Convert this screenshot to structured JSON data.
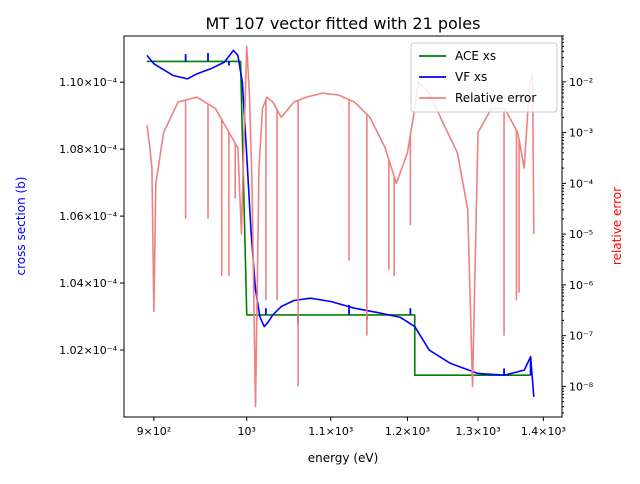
{
  "chart_data": {
    "type": "line",
    "title": "MT 107 vector fitted with 21 poles",
    "xlabel": "energy (eV)",
    "ylabel_left": "cross section (b)",
    "ylabel_right": "relative error",
    "x_scale": "log",
    "y_right_scale": "log",
    "xlim": [
      870,
      1430
    ],
    "ylim_left": [
      0.0001,
      0.00011138
    ],
    "ylim_right": [
      2.5e-09,
      0.08
    ],
    "x_ticks": [
      {
        "value": 900,
        "label": "9×10²"
      },
      {
        "value": 1000,
        "label": "10³"
      },
      {
        "value": 1100,
        "label": "1.1×10³"
      },
      {
        "value": 1200,
        "label": "1.2×10³"
      },
      {
        "value": 1300,
        "label": "1.3×10³"
      },
      {
        "value": 1400,
        "label": "1.4×10³"
      }
    ],
    "y_left_ticks": [
      {
        "value": 0.000102,
        "label": "1.02×10⁻⁴"
      },
      {
        "value": 0.000104,
        "label": "1.04×10⁻⁴"
      },
      {
        "value": 0.000106,
        "label": "1.06×10⁻⁴"
      },
      {
        "value": 0.000108,
        "label": "1.08×10⁻⁴"
      },
      {
        "value": 0.00011,
        "label": "1.10×10⁻⁴"
      }
    ],
    "y_right_ticks": [
      {
        "value": 1e-08,
        "label": "10⁻⁸"
      },
      {
        "value": 1e-07,
        "label": "10⁻⁷"
      },
      {
        "value": 1e-06,
        "label": "10⁻⁶"
      },
      {
        "value": 1e-05,
        "label": "10⁻⁵"
      },
      {
        "value": 0.0001,
        "label": "10⁻⁴"
      },
      {
        "value": 0.001,
        "label": "10⁻³"
      },
      {
        "value": 0.01,
        "label": "10⁻²"
      }
    ],
    "legend_position": "top-right",
    "series": [
      {
        "name": "ACE xs",
        "axis": "left",
        "color": "#008000",
        "x": [
          893,
          993,
          993,
          1000,
          1000,
          1210,
          1210,
          1380
        ],
        "y": [
          0.00011062,
          0.00011062,
          0.00011062,
          0.00010305,
          0.00010305,
          0.00010305,
          0.00010125,
          0.00010125
        ]
      },
      {
        "name": "VF xs",
        "axis": "left",
        "color": "#0000ff",
        "x": [
          893,
          900,
          920,
          935,
          945,
          960,
          975,
          985,
          990,
          995,
          1000,
          1005,
          1010,
          1015,
          1020,
          1025,
          1030,
          1040,
          1055,
          1075,
          1100,
          1130,
          1160,
          1190,
          1210,
          1230,
          1260,
          1300,
          1340,
          1370,
          1380,
          1385
        ],
        "y": [
          0.0001108,
          0.00011055,
          0.0001102,
          0.0001101,
          0.00011025,
          0.0001104,
          0.0001106,
          0.00011095,
          0.0001108,
          0.00011,
          0.0001078,
          0.0001055,
          0.0001038,
          0.000103,
          0.0001027,
          0.00010285,
          0.00010305,
          0.0001033,
          0.00010348,
          0.00010355,
          0.00010345,
          0.00010325,
          0.00010312,
          0.00010298,
          0.0001027,
          0.000102,
          0.0001016,
          0.0001013,
          0.00010125,
          0.0001014,
          0.0001018,
          0.0001006
        ]
      },
      {
        "name": "Relative error",
        "axis": "right",
        "color": "#f08080",
        "x": [
          893,
          896,
          898,
          900,
          902,
          910,
          925,
          945,
          965,
          990,
          994,
          997,
          1000,
          1003,
          1006,
          1010,
          1014,
          1018,
          1023,
          1030,
          1040,
          1055,
          1070,
          1090,
          1110,
          1130,
          1150,
          1170,
          1185,
          1200,
          1210,
          1215,
          1230,
          1250,
          1270,
          1285,
          1292,
          1300,
          1320,
          1340,
          1360,
          1370,
          1378,
          1383,
          1385
        ],
        "y": [
          0.0014,
          0.0005,
          0.0002,
          3e-07,
          0.0001,
          0.001,
          0.004,
          0.005,
          0.003,
          0.0005,
          1e-05,
          0.001,
          0.05,
          0.006,
          0.0001,
          4e-09,
          0.0002,
          0.003,
          0.005,
          0.004,
          0.002,
          0.004,
          0.005,
          0.006,
          0.0055,
          0.004,
          0.002,
          0.0005,
          0.0001,
          0.0004,
          0.003,
          0.01,
          0.006,
          0.0015,
          0.0004,
          3e-05,
          1e-08,
          0.001,
          0.003,
          0.003,
          0.001,
          0.0002,
          0.008,
          0.015,
          1e-05
        ]
      }
    ],
    "spikes": {
      "error_dips": [
        {
          "x": 933,
          "y": 2e-05
        },
        {
          "x": 957,
          "y": 2e-05
        },
        {
          "x": 972,
          "y": 1.5e-06
        },
        {
          "x": 980,
          "y": 1.5e-06
        },
        {
          "x": 987,
          "y": 5e-05
        },
        {
          "x": 1022,
          "y": 5e-07
        },
        {
          "x": 1035,
          "y": 5e-07
        },
        {
          "x": 1060,
          "y": 1e-08
        },
        {
          "x": 1123,
          "y": 3e-06
        },
        {
          "x": 1146,
          "y": 1e-07
        },
        {
          "x": 1175,
          "y": 2e-06
        },
        {
          "x": 1182,
          "y": 1.5e-06
        },
        {
          "x": 1204,
          "y": 1.5e-05
        },
        {
          "x": 1339,
          "y": 1e-07
        },
        {
          "x": 1358,
          "y": 5e-07
        },
        {
          "x": 1362,
          "y": 7e-07
        }
      ],
      "xs_ticks": [
        {
          "x": 900,
          "y": 0.00011062,
          "dy": 2e-08
        },
        {
          "x": 933,
          "y": 0.00011062,
          "dy": 2.2e-07
        },
        {
          "x": 957,
          "y": 0.00011062,
          "dy": 2.5e-07
        },
        {
          "x": 980,
          "y": 0.00011062,
          "dy": -1.2e-07
        },
        {
          "x": 1022,
          "y": 0.00010305,
          "dy": 2e-07
        },
        {
          "x": 1060,
          "y": 0.00010305,
          "dy": -2.5e-07
        },
        {
          "x": 1123,
          "y": 0.00010305,
          "dy": 3e-07
        },
        {
          "x": 1146,
          "y": 0.00010305,
          "dy": -1.5e-07
        },
        {
          "x": 1204,
          "y": 0.00010305,
          "dy": 2e-07
        },
        {
          "x": 1339,
          "y": 0.00010125,
          "dy": 2e-07
        },
        {
          "x": 1380,
          "y": 0.00010125,
          "dy": 5e-07
        }
      ]
    }
  }
}
